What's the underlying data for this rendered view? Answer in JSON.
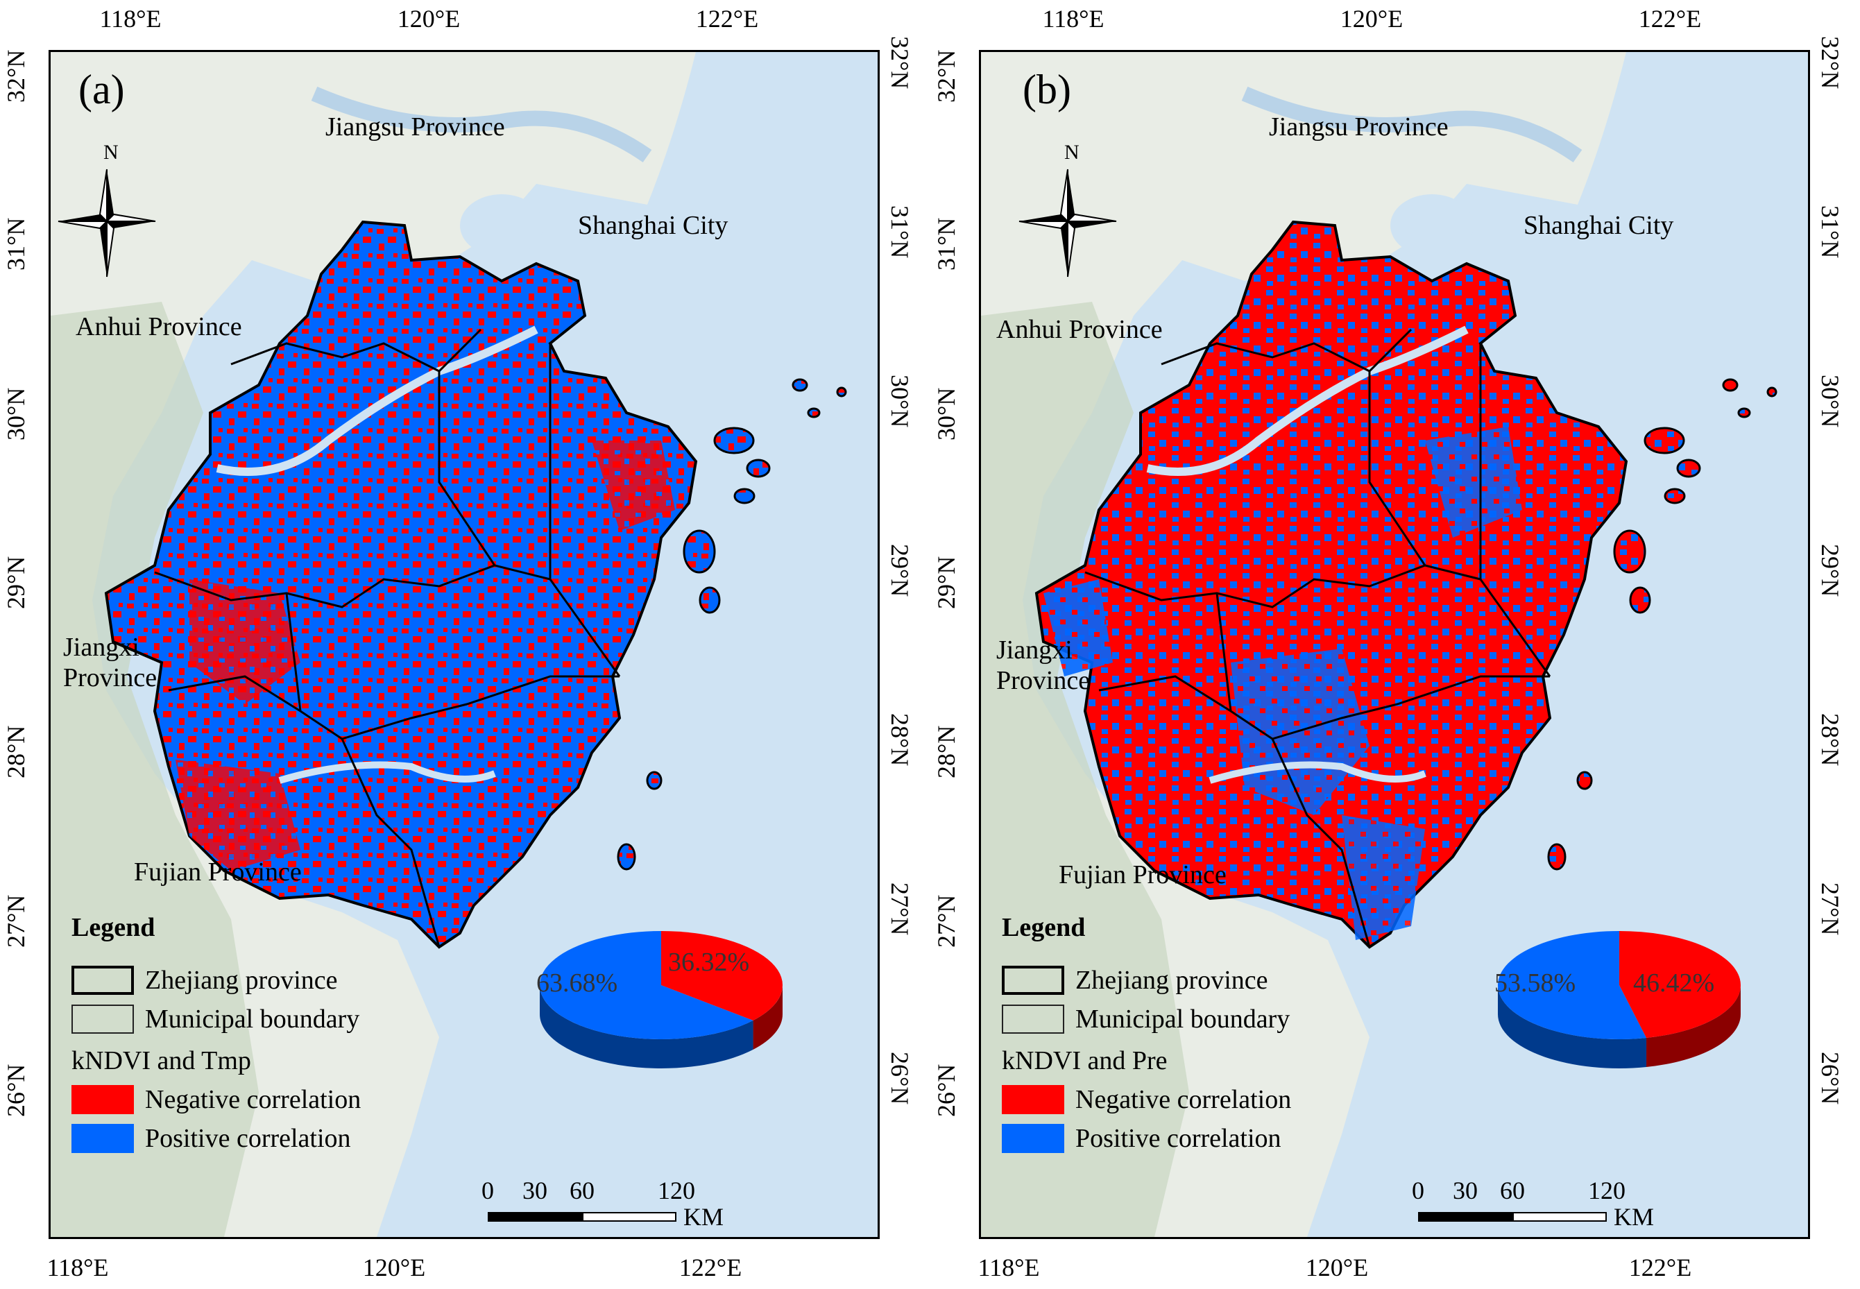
{
  "panels": [
    {
      "id": "a",
      "label": "(a)",
      "lon_ticks": [
        "118°E",
        "120°E",
        "122°E"
      ],
      "lat_ticks": [
        "32°N",
        "31°N",
        "30°N",
        "29°N",
        "28°N",
        "27°N",
        "26°N"
      ],
      "provinces": {
        "jiangsu": "Jiangsu Province",
        "shanghai": "Shanghai City",
        "anhui": "Anhui Province",
        "jiangxi_1": "Jiangxi",
        "jiangxi_2": "Province",
        "fujian": "Fujian Province"
      },
      "north": "N",
      "legend": {
        "title": "Legend",
        "zhejiang": "Zhejiang province",
        "municipal": "Municipal boundary",
        "subtitle": "kNDVI and Tmp",
        "negative": "Negative correlation",
        "positive": "Positive correlation"
      },
      "pie": {
        "positive_label": "63.68%",
        "negative_label": "36.32%",
        "positive_pct": 63.68,
        "negative_pct": 36.32
      },
      "scalebar": {
        "t0": "0",
        "t1": "30",
        "t2": "60",
        "t3": "120",
        "unit": "KM"
      }
    },
    {
      "id": "b",
      "label": "(b)",
      "lon_ticks": [
        "118°E",
        "120°E",
        "122°E"
      ],
      "lat_ticks": [
        "32°N",
        "31°N",
        "30°N",
        "29°N",
        "28°N",
        "27°N",
        "26°N"
      ],
      "provinces": {
        "jiangsu": "Jiangsu Province",
        "shanghai": "Shanghai City",
        "anhui": "Anhui Province",
        "jiangxi_1": "Jiangxi",
        "jiangxi_2": "Province",
        "fujian": "Fujian Province"
      },
      "north": "N",
      "legend": {
        "title": "Legend",
        "zhejiang": "Zhejiang province",
        "municipal": "Municipal boundary",
        "subtitle": "kNDVI and Pre",
        "negative": "Negative correlation",
        "positive": "Positive correlation"
      },
      "pie": {
        "positive_label": "53.58%",
        "negative_label": "46.42%",
        "positive_pct": 53.58,
        "negative_pct": 46.42
      },
      "scalebar": {
        "t0": "0",
        "t1": "30",
        "t2": "60",
        "t3": "120",
        "unit": "KM"
      }
    }
  ],
  "colors": {
    "negative": "#ff0000",
    "positive": "#0066ff",
    "sea": "#cfe3f3",
    "land": "#e9ede6",
    "relief": "#c8d6c0"
  }
}
